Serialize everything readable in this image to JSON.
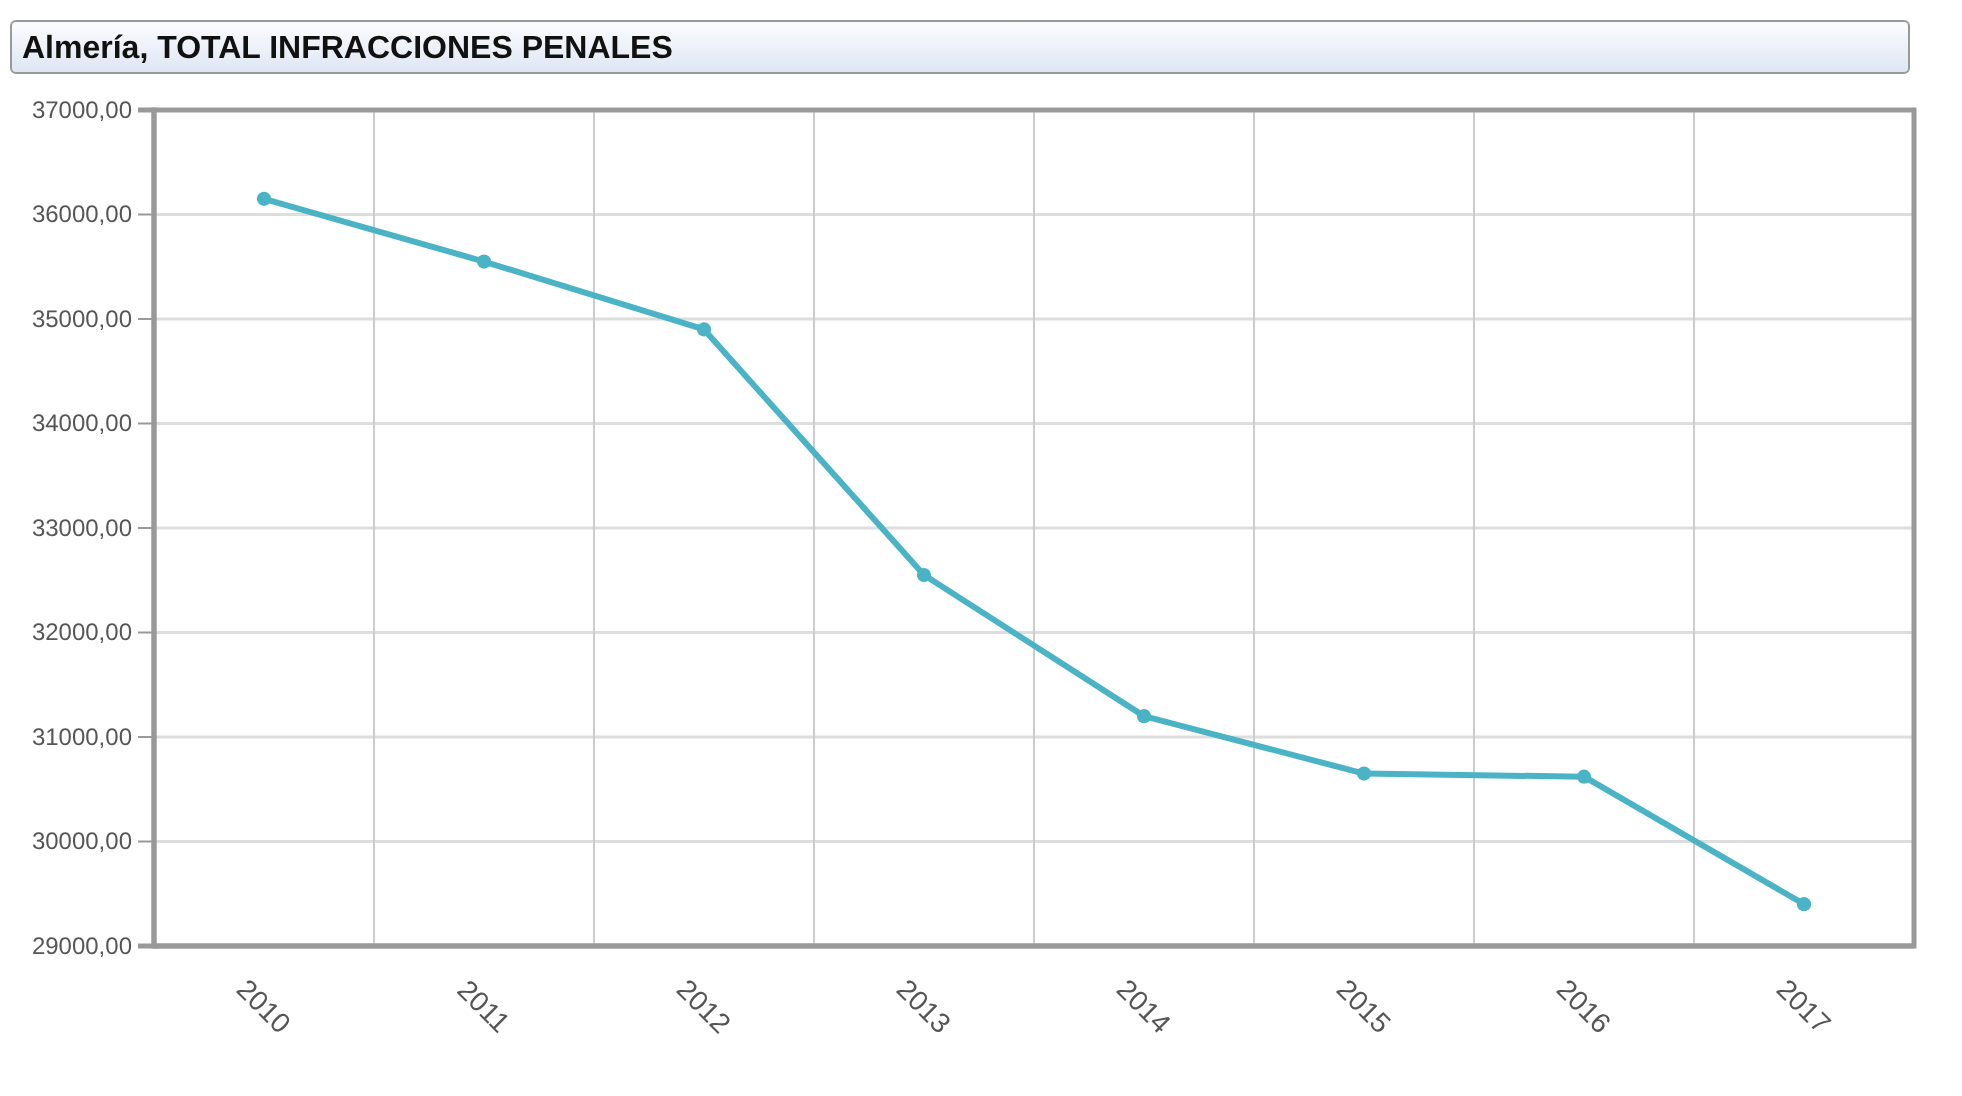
{
  "chart_data": {
    "type": "line",
    "title": "Almería, TOTAL INFRACCIONES PENALES",
    "categories": [
      "2010",
      "2011",
      "2012",
      "2013",
      "2014",
      "2015",
      "2016",
      "2017"
    ],
    "series": [
      {
        "color": "#4bb3c6",
        "values": [
          36150,
          35550,
          34900,
          32550,
          31200,
          30650,
          30620,
          29400
        ]
      }
    ],
    "ylim": [
      29000,
      37000
    ],
    "yticks": [
      {
        "value": 29000,
        "label": "29000,00"
      },
      {
        "value": 30000,
        "label": "30000,00"
      },
      {
        "value": 31000,
        "label": "31000,00"
      },
      {
        "value": 32000,
        "label": "32000,00"
      },
      {
        "value": 33000,
        "label": "33000,00"
      },
      {
        "value": 34000,
        "label": "34000,00"
      },
      {
        "value": 35000,
        "label": "35000,00"
      },
      {
        "value": 36000,
        "label": "36000,00"
      },
      {
        "value": 37000,
        "label": "37000,00"
      }
    ],
    "grid": true,
    "marker": "circle",
    "line_style": "solid"
  }
}
